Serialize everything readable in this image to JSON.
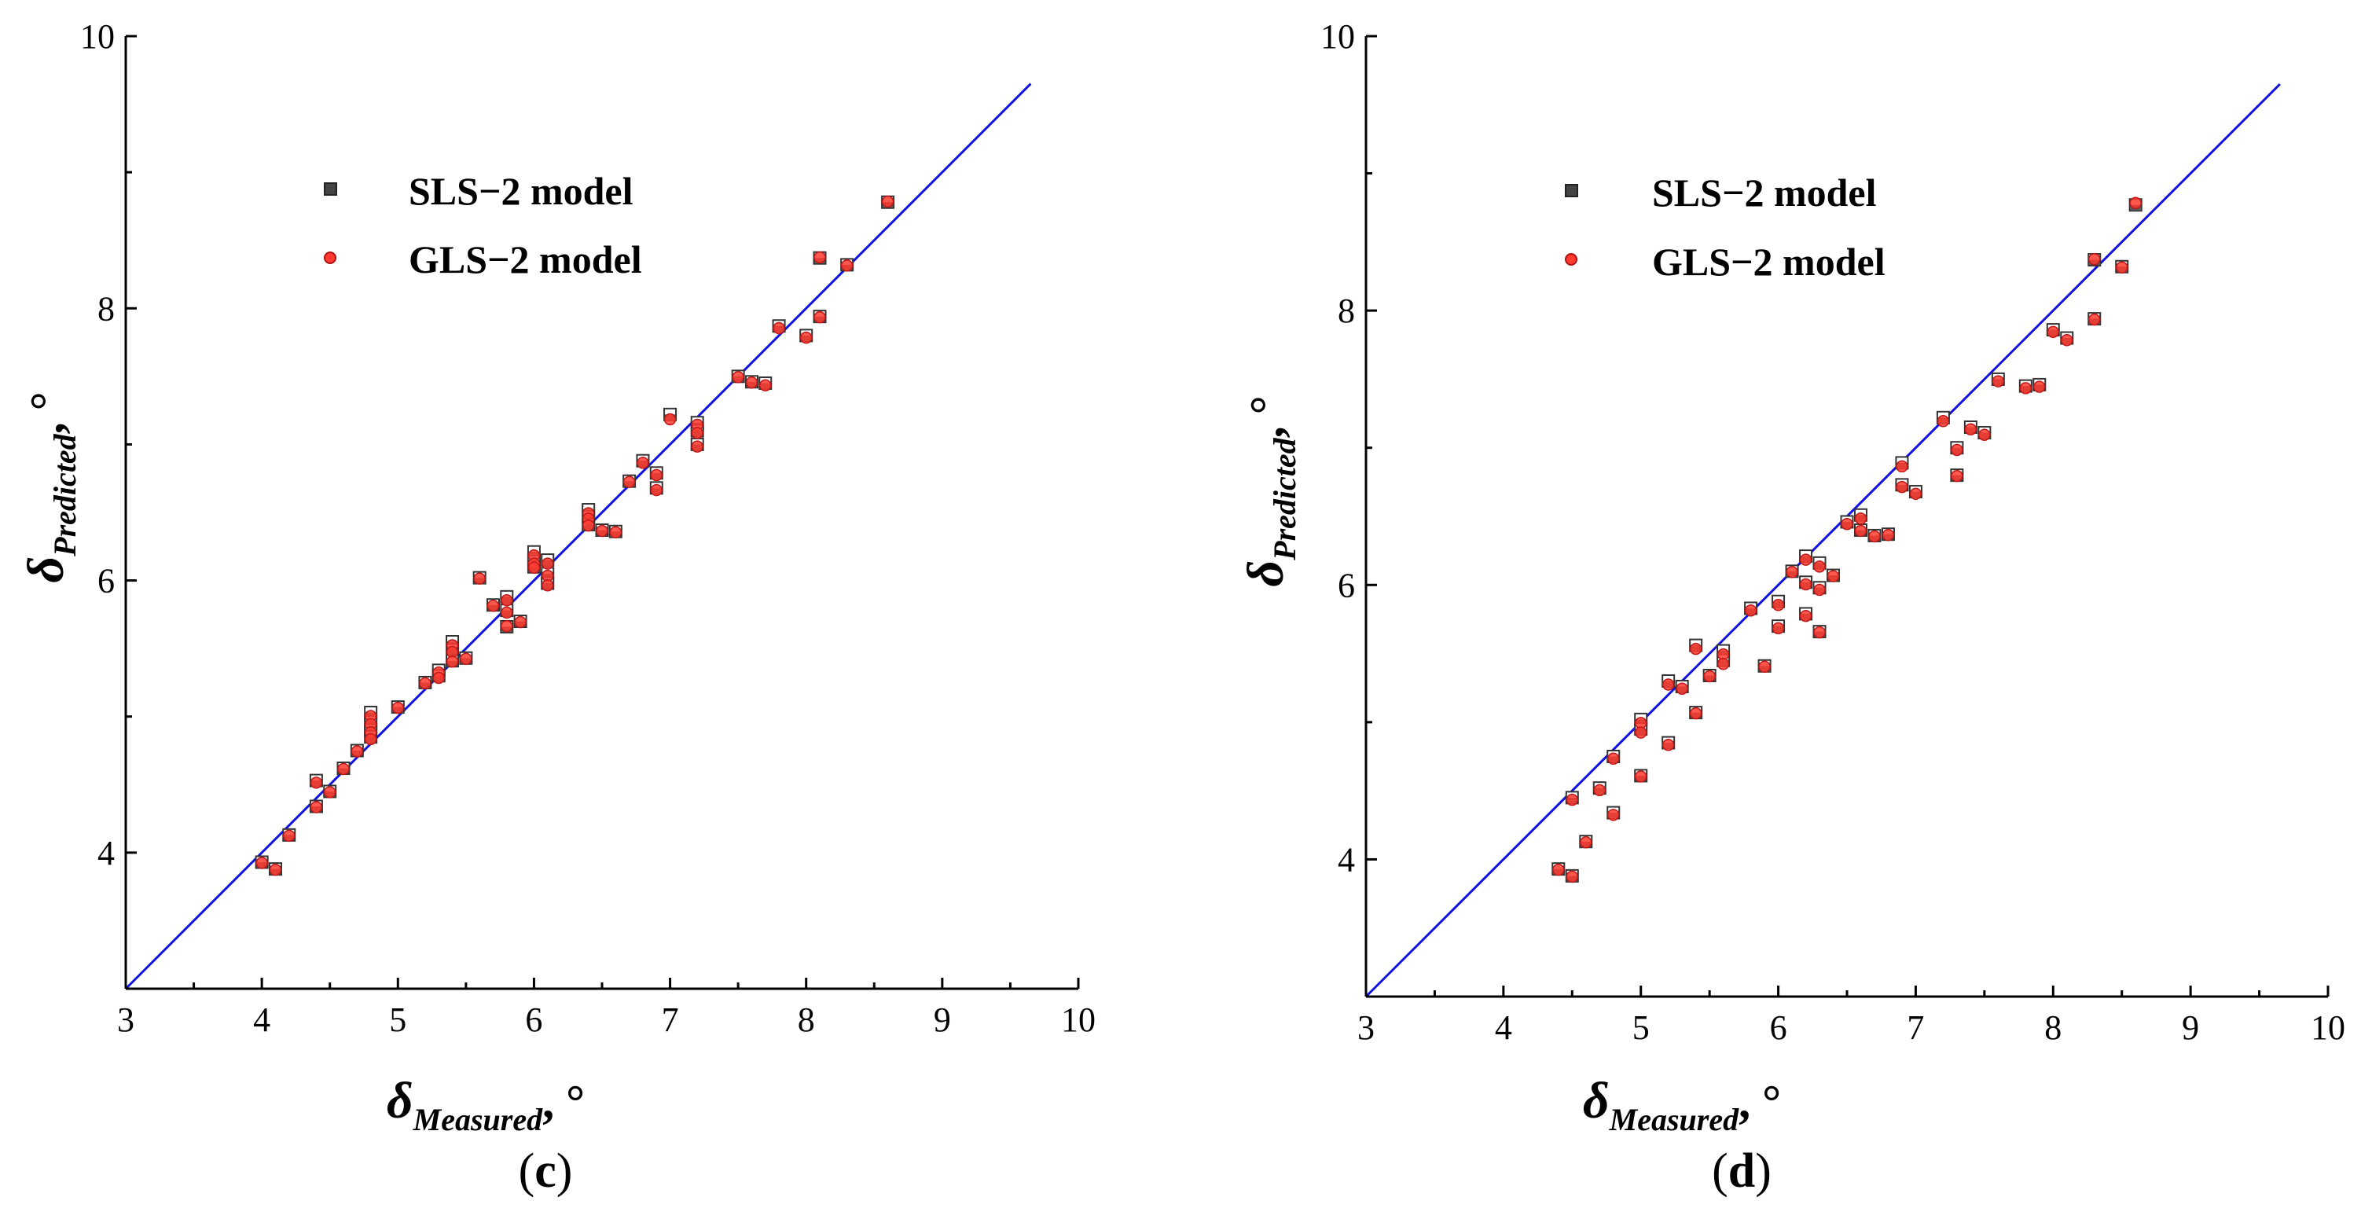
{
  "chart_data": [
    {
      "type": "scatter",
      "panel": "c",
      "caption_open": "(",
      "caption_letter": "c",
      "caption_close": ")",
      "xlabel_symbol": "δ",
      "xlabel_sub": "Measured",
      "xlabel_unit": ", °",
      "ylabel_symbol": "δ",
      "ylabel_sub": "Predicted",
      "ylabel_unit": ", °",
      "xlim": [
        3,
        10
      ],
      "ylim": [
        3,
        10
      ],
      "xticks": [
        3,
        4,
        5,
        6,
        7,
        8,
        9,
        10
      ],
      "yticks": [
        4,
        6,
        8,
        10
      ],
      "reference_line": {
        "x": [
          3,
          9.65
        ],
        "y": [
          3,
          9.65
        ],
        "color": "#1010e0"
      },
      "legend": [
        {
          "label": "SLS−2 model",
          "marker": "square",
          "color": "#444444"
        },
        {
          "label": "GLS−2 model",
          "marker": "circle",
          "color": "#ff3b30"
        }
      ],
      "series": [
        {
          "name": "SLS−2 model",
          "points": [
            [
              4.0,
              3.93
            ],
            [
              4.1,
              3.88
            ],
            [
              4.2,
              4.13
            ],
            [
              4.4,
              4.53
            ],
            [
              4.4,
              4.34
            ],
            [
              4.5,
              4.45
            ],
            [
              4.6,
              4.62
            ],
            [
              4.7,
              4.75
            ],
            [
              4.8,
              5.03
            ],
            [
              4.8,
              4.96
            ],
            [
              4.8,
              4.9
            ],
            [
              4.8,
              4.85
            ],
            [
              5.0,
              5.07
            ],
            [
              5.2,
              5.25
            ],
            [
              5.3,
              5.34
            ],
            [
              5.3,
              5.3
            ],
            [
              5.4,
              5.55
            ],
            [
              5.4,
              5.49
            ],
            [
              5.4,
              5.41
            ],
            [
              5.5,
              5.43
            ],
            [
              5.6,
              6.02
            ],
            [
              5.7,
              5.82
            ],
            [
              5.8,
              5.88
            ],
            [
              5.8,
              5.78
            ],
            [
              5.8,
              5.66
            ],
            [
              5.9,
              5.7
            ],
            [
              6.0,
              6.21
            ],
            [
              6.0,
              6.14
            ],
            [
              6.0,
              6.1
            ],
            [
              6.1,
              6.15
            ],
            [
              6.1,
              6.05
            ],
            [
              6.1,
              5.98
            ],
            [
              6.4,
              6.52
            ],
            [
              6.4,
              6.47
            ],
            [
              6.4,
              6.41
            ],
            [
              6.5,
              6.37
            ],
            [
              6.6,
              6.36
            ],
            [
              6.7,
              6.73
            ],
            [
              6.8,
              6.88
            ],
            [
              6.9,
              6.79
            ],
            [
              6.9,
              6.68
            ],
            [
              7.0,
              7.22
            ],
            [
              7.2,
              7.16
            ],
            [
              7.2,
              7.1
            ],
            [
              7.2,
              7.0
            ],
            [
              7.5,
              7.5
            ],
            [
              7.6,
              7.46
            ],
            [
              7.7,
              7.45
            ],
            [
              7.8,
              7.87
            ],
            [
              8.0,
              7.8
            ],
            [
              8.1,
              8.37
            ],
            [
              8.1,
              7.94
            ],
            [
              8.3,
              8.32
            ],
            [
              8.6,
              8.78
            ]
          ]
        },
        {
          "name": "GLS−2 model",
          "points": [
            [
              4.0,
              3.93
            ],
            [
              4.1,
              3.88
            ],
            [
              4.2,
              4.13
            ],
            [
              4.4,
              4.52
            ],
            [
              4.4,
              4.34
            ],
            [
              4.5,
              4.45
            ],
            [
              4.6,
              4.62
            ],
            [
              4.7,
              4.75
            ],
            [
              4.8,
              5.01
            ],
            [
              4.8,
              4.95
            ],
            [
              4.8,
              4.89
            ],
            [
              4.8,
              4.84
            ],
            [
              5.0,
              5.07
            ],
            [
              5.2,
              5.25
            ],
            [
              5.3,
              5.33
            ],
            [
              5.3,
              5.29
            ],
            [
              5.4,
              5.53
            ],
            [
              5.4,
              5.48
            ],
            [
              5.4,
              5.41
            ],
            [
              5.5,
              5.43
            ],
            [
              5.6,
              6.02
            ],
            [
              5.7,
              5.82
            ],
            [
              5.8,
              5.86
            ],
            [
              5.8,
              5.77
            ],
            [
              5.8,
              5.67
            ],
            [
              5.9,
              5.7
            ],
            [
              6.0,
              6.19
            ],
            [
              6.0,
              6.13
            ],
            [
              6.0,
              6.1
            ],
            [
              6.1,
              6.13
            ],
            [
              6.1,
              6.04
            ],
            [
              6.1,
              5.97
            ],
            [
              6.4,
              6.5
            ],
            [
              6.4,
              6.46
            ],
            [
              6.4,
              6.41
            ],
            [
              6.5,
              6.37
            ],
            [
              6.6,
              6.36
            ],
            [
              6.7,
              6.73
            ],
            [
              6.8,
              6.87
            ],
            [
              6.9,
              6.78
            ],
            [
              6.9,
              6.67
            ],
            [
              7.0,
              7.19
            ],
            [
              7.2,
              7.15
            ],
            [
              7.2,
              7.09
            ],
            [
              7.2,
              6.99
            ],
            [
              7.5,
              7.5
            ],
            [
              7.6,
              7.46
            ],
            [
              7.7,
              7.44
            ],
            [
              7.8,
              7.86
            ],
            [
              8.0,
              7.79
            ],
            [
              8.1,
              8.38
            ],
            [
              8.1,
              7.94
            ],
            [
              8.3,
              8.32
            ],
            [
              8.6,
              8.79
            ]
          ]
        }
      ]
    },
    {
      "type": "scatter",
      "panel": "d",
      "caption_open": "(",
      "caption_letter": "d",
      "caption_close": ")",
      "xlabel_symbol": "δ",
      "xlabel_sub": "Measured",
      "xlabel_unit": ", °",
      "ylabel_symbol": "δ",
      "ylabel_sub": "Predicted",
      "ylabel_unit": ", °",
      "xlim": [
        3,
        10
      ],
      "ylim": [
        3,
        10
      ],
      "xticks": [
        3,
        4,
        5,
        6,
        7,
        8,
        9,
        10
      ],
      "yticks": [
        4,
        6,
        8,
        10
      ],
      "reference_line": {
        "x": [
          3,
          9.65
        ],
        "y": [
          3,
          9.65
        ],
        "color": "#1010e0"
      },
      "legend": [
        {
          "label": "SLS−2 model",
          "marker": "square",
          "color": "#444444"
        },
        {
          "label": "GLS−2 model",
          "marker": "circle",
          "color": "#ff3b30"
        }
      ],
      "series": [
        {
          "name": "SLS−2 model",
          "points": [
            [
              4.4,
              3.93
            ],
            [
              4.5,
              3.88
            ],
            [
              4.5,
              4.45
            ],
            [
              4.6,
              4.13
            ],
            [
              4.7,
              4.52
            ],
            [
              4.8,
              4.34
            ],
            [
              4.8,
              4.75
            ],
            [
              5.0,
              5.02
            ],
            [
              5.0,
              4.95
            ],
            [
              5.0,
              4.61
            ],
            [
              5.2,
              5.3
            ],
            [
              5.2,
              4.85
            ],
            [
              5.3,
              5.26
            ],
            [
              5.4,
              5.56
            ],
            [
              5.4,
              5.07
            ],
            [
              5.5,
              5.34
            ],
            [
              5.6,
              5.52
            ],
            [
              5.6,
              5.45
            ],
            [
              5.8,
              5.83
            ],
            [
              5.9,
              5.41
            ],
            [
              6.0,
              5.88
            ],
            [
              6.0,
              5.7
            ],
            [
              6.1,
              6.1
            ],
            [
              6.2,
              6.21
            ],
            [
              6.2,
              6.02
            ],
            [
              6.2,
              5.79
            ],
            [
              6.3,
              6.16
            ],
            [
              6.3,
              5.98
            ],
            [
              6.3,
              5.66
            ],
            [
              6.4,
              6.07
            ],
            [
              6.5,
              6.46
            ],
            [
              6.6,
              6.51
            ],
            [
              6.6,
              6.4
            ],
            [
              6.7,
              6.36
            ],
            [
              6.8,
              6.37
            ],
            [
              6.9,
              6.89
            ],
            [
              6.9,
              6.73
            ],
            [
              7.0,
              6.68
            ],
            [
              7.2,
              7.22
            ],
            [
              7.3,
              7.0
            ],
            [
              7.3,
              6.8
            ],
            [
              7.4,
              7.15
            ],
            [
              7.5,
              7.11
            ],
            [
              7.6,
              7.5
            ],
            [
              7.8,
              7.45
            ],
            [
              7.9,
              7.46
            ],
            [
              8.0,
              7.86
            ],
            [
              8.1,
              7.8
            ],
            [
              8.3,
              8.37
            ],
            [
              8.3,
              7.94
            ],
            [
              8.5,
              8.32
            ],
            [
              8.6,
              8.77
            ]
          ]
        },
        {
          "name": "GLS−2 model",
          "points": [
            [
              4.4,
              3.93
            ],
            [
              4.5,
              3.88
            ],
            [
              4.5,
              4.44
            ],
            [
              4.6,
              4.13
            ],
            [
              4.7,
              4.51
            ],
            [
              4.8,
              4.33
            ],
            [
              4.8,
              4.74
            ],
            [
              5.0,
              5.0
            ],
            [
              5.0,
              4.93
            ],
            [
              5.0,
              4.61
            ],
            [
              5.2,
              5.28
            ],
            [
              5.2,
              4.84
            ],
            [
              5.3,
              5.25
            ],
            [
              5.4,
              5.54
            ],
            [
              5.4,
              5.07
            ],
            [
              5.5,
              5.34
            ],
            [
              5.6,
              5.5
            ],
            [
              5.6,
              5.43
            ],
            [
              5.8,
              5.82
            ],
            [
              5.9,
              5.41
            ],
            [
              6.0,
              5.86
            ],
            [
              6.0,
              5.69
            ],
            [
              6.1,
              6.1
            ],
            [
              6.2,
              6.19
            ],
            [
              6.2,
              6.01
            ],
            [
              6.2,
              5.78
            ],
            [
              6.3,
              6.14
            ],
            [
              6.3,
              5.97
            ],
            [
              6.3,
              5.66
            ],
            [
              6.4,
              6.07
            ],
            [
              6.5,
              6.45
            ],
            [
              6.6,
              6.49
            ],
            [
              6.6,
              6.4
            ],
            [
              6.7,
              6.36
            ],
            [
              6.8,
              6.37
            ],
            [
              6.9,
              6.87
            ],
            [
              6.9,
              6.72
            ],
            [
              7.0,
              6.67
            ],
            [
              7.2,
              7.2
            ],
            [
              7.3,
              6.99
            ],
            [
              7.3,
              6.8
            ],
            [
              7.4,
              7.14
            ],
            [
              7.5,
              7.1
            ],
            [
              7.6,
              7.49
            ],
            [
              7.8,
              7.44
            ],
            [
              7.9,
              7.45
            ],
            [
              8.0,
              7.85
            ],
            [
              8.1,
              7.79
            ],
            [
              8.3,
              8.38
            ],
            [
              8.3,
              7.94
            ],
            [
              8.5,
              8.32
            ],
            [
              8.6,
              8.79
            ]
          ]
        }
      ]
    }
  ]
}
